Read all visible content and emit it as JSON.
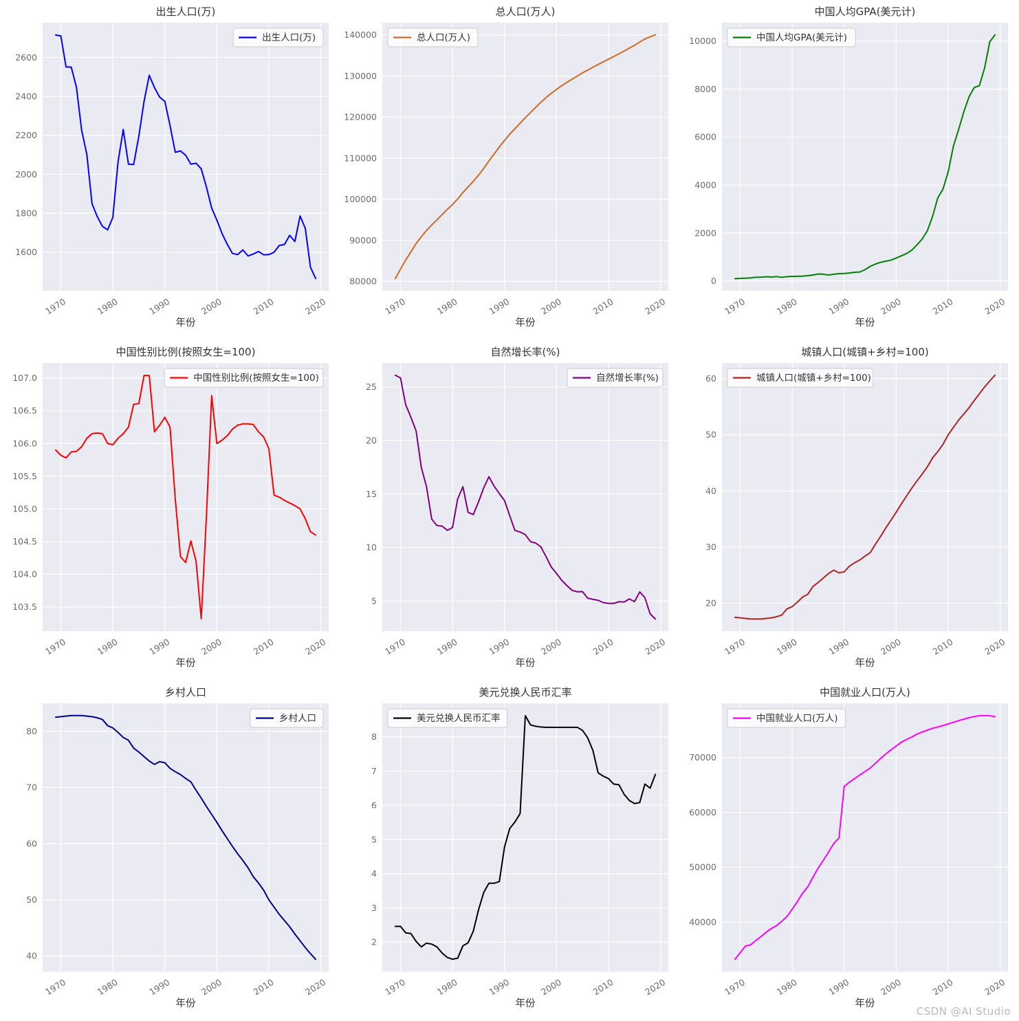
{
  "watermark": "CSDN @AI Studio",
  "style": {
    "figure_bg": "#ffffff",
    "plot_bg": "#eaeaf2",
    "grid_color": "#ffffff",
    "title_color": "#333333",
    "tick_color": "#6b6b6b",
    "legend_bg": "rgba(255,255,255,0.8)",
    "legend_border": "#cccccc",
    "legend_text": "#333333"
  },
  "x_axis": {
    "label": "年份",
    "ticks": [
      1970,
      1980,
      1990,
      2000,
      2010,
      2020
    ],
    "lim": [
      1966.5,
      2021.5
    ],
    "years": [
      1969,
      1970,
      1971,
      1972,
      1973,
      1974,
      1975,
      1976,
      1977,
      1978,
      1979,
      1980,
      1981,
      1982,
      1983,
      1984,
      1985,
      1986,
      1987,
      1988,
      1989,
      1990,
      1991,
      1992,
      1993,
      1994,
      1995,
      1996,
      1997,
      1998,
      1999,
      2000,
      2001,
      2002,
      2003,
      2004,
      2005,
      2006,
      2007,
      2008,
      2009,
      2010,
      2011,
      2012,
      2013,
      2014,
      2015,
      2016,
      2017,
      2018,
      2019
    ]
  },
  "chart_data": [
    {
      "id": "birth-population",
      "type": "line",
      "title": "出生人口(万)",
      "legend": "出生人口(万)",
      "legend_pos": "tr",
      "color": "#0000ff",
      "xlabel": "年份",
      "ylim": [
        1402,
        2778
      ],
      "yticks": [
        1600,
        1800,
        2000,
        2200,
        2400,
        2600
      ],
      "decimals": 0,
      "values": [
        2715,
        2710,
        2551,
        2550,
        2447,
        2226,
        2102,
        1849,
        1783,
        1733,
        1715,
        1779,
        2064,
        2230,
        2052,
        2050,
        2196,
        2374,
        2508,
        2445,
        2396,
        2374,
        2250,
        2113,
        2120,
        2098,
        2052,
        2057,
        2028,
        1934,
        1827,
        1765,
        1696,
        1641,
        1594,
        1588,
        1612,
        1581,
        1591,
        1604,
        1587,
        1588,
        1600,
        1635,
        1640,
        1687,
        1655,
        1786,
        1723,
        1523,
        1465
      ]
    },
    {
      "id": "total-population",
      "type": "line",
      "title": "总人口(万人)",
      "legend": "总人口(万人)",
      "legend_pos": "tl",
      "color": "#d2691e",
      "xlabel": "年份",
      "ylim": [
        77704,
        142972
      ],
      "yticks": [
        80000,
        90000,
        100000,
        110000,
        120000,
        130000,
        140000
      ],
      "decimals": 0,
      "values": [
        80671,
        82992,
        85229,
        87177,
        89211,
        90859,
        92420,
        93717,
        94974,
        96259,
        97542,
        98705,
        100072,
        101654,
        103008,
        104357,
        105851,
        107507,
        109300,
        111026,
        112704,
        114333,
        115823,
        117171,
        118517,
        119850,
        121121,
        122389,
        123626,
        124761,
        125786,
        126743,
        127627,
        128453,
        129227,
        129988,
        130756,
        131448,
        132129,
        132802,
        133450,
        134091,
        134735,
        135404,
        136072,
        136782,
        137462,
        138271,
        139008,
        139538,
        140005
      ]
    },
    {
      "id": "gdp-per-capita",
      "type": "line",
      "title": "中国人均GPA(美元计)",
      "legend": "中国人均GPA(美元计)",
      "legend_pos": "tl",
      "color": "#008000",
      "xlabel": "年份",
      "ylim": [
        -408,
        10770
      ],
      "yticks": [
        0,
        2000,
        4000,
        6000,
        8000,
        10000
      ],
      "decimals": 0,
      "values": [
        100,
        113,
        118,
        131,
        157,
        160,
        178,
        165,
        185,
        156,
        183,
        194,
        197,
        203,
        225,
        250,
        294,
        282,
        251,
        283,
        310,
        317,
        333,
        366,
        377,
        473,
        609,
        709,
        781,
        828,
        873,
        959,
        1053,
        1148,
        1288,
        1508,
        1753,
        2099,
        2694,
        3468,
        3832,
        4550,
        5618,
        6316,
        7050,
        7678,
        8066,
        8147,
        8879,
        9976,
        10261
      ]
    },
    {
      "id": "gender-ratio",
      "type": "line",
      "title": "中国性别比例(按照女生=100)",
      "legend": "中国性别比例(按照女生=100)",
      "legend_pos": "tr",
      "color": "#ff0000",
      "xlabel": "年份",
      "ylim": [
        103.13,
        107.23
      ],
      "yticks": [
        103.5,
        104.0,
        104.5,
        105.0,
        105.5,
        106.0,
        106.5,
        107.0
      ],
      "decimals": 1,
      "values": [
        105.9,
        105.82,
        105.78,
        105.87,
        105.88,
        105.95,
        106.08,
        106.15,
        106.16,
        106.15,
        106.0,
        105.98,
        106.08,
        106.15,
        106.25,
        106.6,
        106.61,
        107.04,
        107.04,
        106.18,
        106.28,
        106.4,
        106.25,
        105.15,
        104.27,
        104.18,
        104.51,
        104.2,
        103.32,
        104.9,
        106.73,
        106.0,
        106.05,
        106.12,
        106.22,
        106.28,
        106.3,
        106.3,
        106.29,
        106.18,
        106.1,
        105.92,
        105.21,
        105.18,
        105.13,
        105.09,
        105.05,
        105.0,
        104.85,
        104.65,
        104.6
      ]
    },
    {
      "id": "natural-growth-rate",
      "type": "line",
      "title": "自然增长率(%)",
      "legend": "自然增长率(%)",
      "legend_pos": "tr",
      "color": "#800080",
      "xlabel": "年份",
      "ylim": [
        2.2,
        27.22
      ],
      "yticks": [
        5,
        10,
        15,
        20,
        25
      ],
      "decimals": 0,
      "values": [
        26.08,
        25.83,
        23.33,
        22.16,
        20.89,
        17.48,
        15.69,
        12.66,
        12.06,
        12.0,
        11.61,
        11.87,
        14.55,
        15.68,
        13.29,
        13.08,
        14.26,
        15.57,
        16.61,
        15.73,
        15.04,
        14.39,
        12.98,
        11.6,
        11.45,
        11.21,
        10.55,
        10.42,
        10.06,
        9.14,
        8.18,
        7.58,
        6.95,
        6.45,
        6.01,
        5.87,
        5.89,
        5.28,
        5.17,
        5.08,
        4.87,
        4.79,
        4.79,
        4.95,
        4.92,
        5.21,
        4.96,
        5.86,
        5.32,
        3.81,
        3.34
      ]
    },
    {
      "id": "urban-population-share",
      "type": "line",
      "title": "城镇人口(城镇+乡村=100)",
      "legend": "城镇人口(城镇+乡村=100)",
      "legend_pos": "tl",
      "color": "#b22222",
      "xlabel": "年份",
      "ylim": [
        15.03,
        62.77
      ],
      "yticks": [
        20,
        30,
        40,
        50,
        60
      ],
      "decimals": 0,
      "values": [
        17.5,
        17.4,
        17.3,
        17.2,
        17.2,
        17.2,
        17.3,
        17.4,
        17.6,
        17.9,
        19.0,
        19.4,
        20.2,
        21.1,
        21.6,
        23.0,
        23.7,
        24.5,
        25.3,
        25.9,
        25.4,
        25.6,
        26.6,
        27.2,
        27.7,
        28.4,
        29.0,
        30.5,
        31.9,
        33.4,
        34.8,
        36.2,
        37.7,
        39.1,
        40.5,
        41.8,
        43.0,
        44.3,
        45.9,
        47.0,
        48.3,
        50.0,
        51.3,
        52.6,
        53.7,
        54.8,
        56.1,
        57.3,
        58.5,
        59.6,
        60.6
      ]
    },
    {
      "id": "rural-population-share",
      "type": "line",
      "title": "乡村人口",
      "legend": "乡村人口",
      "legend_pos": "tr",
      "color": "#00008b",
      "xlabel": "年份",
      "ylim": [
        37.23,
        84.97
      ],
      "yticks": [
        40,
        50,
        60,
        70,
        80
      ],
      "decimals": 0,
      "values": [
        82.5,
        82.6,
        82.7,
        82.8,
        82.8,
        82.8,
        82.7,
        82.6,
        82.4,
        82.1,
        81.0,
        80.6,
        79.8,
        78.9,
        78.4,
        77.0,
        76.3,
        75.5,
        74.7,
        74.1,
        74.6,
        74.4,
        73.4,
        72.8,
        72.3,
        71.6,
        71.0,
        69.5,
        68.1,
        66.6,
        65.2,
        63.8,
        62.3,
        60.9,
        59.5,
        58.2,
        57.0,
        55.7,
        54.1,
        53.0,
        51.7,
        50.0,
        48.7,
        47.4,
        46.3,
        45.2,
        43.9,
        42.7,
        41.5,
        40.4,
        39.4
      ]
    },
    {
      "id": "usd-cny-exchange-rate",
      "type": "line",
      "title": "美元兑换人民币汇率",
      "legend": "美元兑换人民币汇率",
      "legend_pos": "tl",
      "color": "#000000",
      "xlabel": "年份",
      "ylim": [
        1.14,
        8.98
      ],
      "yticks": [
        2,
        3,
        4,
        5,
        6,
        7,
        8
      ],
      "decimals": 0,
      "values": [
        2.46,
        2.46,
        2.27,
        2.25,
        2.02,
        1.86,
        1.97,
        1.94,
        1.86,
        1.68,
        1.55,
        1.5,
        1.53,
        1.89,
        1.98,
        2.32,
        2.94,
        3.45,
        3.72,
        3.72,
        3.77,
        4.78,
        5.32,
        5.51,
        5.76,
        8.62,
        8.35,
        8.31,
        8.29,
        8.28,
        8.28,
        8.28,
        8.28,
        8.28,
        8.28,
        8.28,
        8.19,
        7.97,
        7.6,
        6.95,
        6.85,
        6.78,
        6.62,
        6.6,
        6.32,
        6.14,
        6.05,
        6.08,
        6.62,
        6.5,
        6.9
      ]
    },
    {
      "id": "employment",
      "type": "line",
      "title": "中国就业人口(万人)",
      "legend": "中国就业人口(万人)",
      "legend_pos": "tl",
      "color": "#ff00ff",
      "xlabel": "年份",
      "ylim": [
        31004,
        79861
      ],
      "yticks": [
        40000,
        50000,
        60000,
        70000
      ],
      "decimals": 0,
      "values": [
        33225,
        34432,
        35620,
        35854,
        36652,
        37369,
        38168,
        38834,
        39377,
        40152,
        41024,
        42361,
        43725,
        45295,
        46436,
        48197,
        49873,
        51282,
        52783,
        54334,
        55329,
        64749,
        65491,
        66152,
        66808,
        67455,
        68065,
        68950,
        69820,
        70637,
        71394,
        72085,
        72797,
        73280,
        73736,
        74264,
        74647,
        74978,
        75321,
        75564,
        75828,
        76105,
        76420,
        76704,
        76977,
        77253,
        77451,
        77603,
        77640,
        77586,
        77471
      ]
    }
  ]
}
